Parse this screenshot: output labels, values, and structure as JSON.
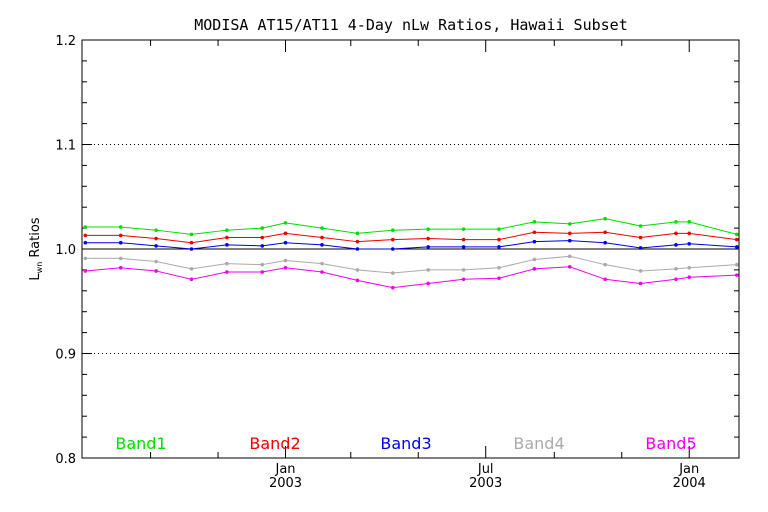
{
  "chart_data": {
    "type": "line",
    "title": "MODISA AT15/AT11 4-Day nLw Ratios, Hawaii Subset",
    "ylabel": {
      "main": "L",
      "sub": "wn",
      "rest": " Ratios"
    },
    "ylim": [
      0.8,
      1.2
    ],
    "y_ticks": [
      {
        "value": 0.8,
        "label": "0.8"
      },
      {
        "value": 0.9,
        "label": "0.9"
      },
      {
        "value": 1.0,
        "label": "1.0"
      },
      {
        "value": 1.1,
        "label": "1.1"
      },
      {
        "value": 1.2,
        "label": "1.2"
      }
    ],
    "y_minor_step": 0.02,
    "y_dotted_gridlines": [
      0.9,
      1.0,
      1.1
    ],
    "xlim": [
      "2002-07-01",
      "2004-02-15"
    ],
    "x_ticks": [
      {
        "date": "2003-01-01",
        "label": "Jan",
        "label2": "2003"
      },
      {
        "date": "2003-07-01",
        "label": "Jul",
        "label2": "2003"
      },
      {
        "date": "2004-01-01",
        "label": "Jan",
        "label2": "2004"
      }
    ],
    "x_minor_ticks": [
      "2002-09-01",
      "2002-11-01",
      "2003-03-01",
      "2003-05-01",
      "2003-09-01",
      "2003-11-01"
    ],
    "x": [
      "2002-07-04",
      "2002-08-05",
      "2002-09-06",
      "2002-10-08",
      "2002-11-09",
      "2002-12-11",
      "2003-01-01",
      "2003-02-03",
      "2003-03-07",
      "2003-04-08",
      "2003-05-10",
      "2003-06-11",
      "2003-07-13",
      "2003-08-14",
      "2003-09-15",
      "2003-10-17",
      "2003-11-18",
      "2003-12-20",
      "2004-01-01",
      "2004-02-13"
    ],
    "series": [
      {
        "name": "Band1",
        "color": "#00dd00",
        "values": [
          1.021,
          1.021,
          1.018,
          1.014,
          1.018,
          1.02,
          1.025,
          1.02,
          1.015,
          1.018,
          1.019,
          1.019,
          1.019,
          1.026,
          1.024,
          1.029,
          1.022,
          1.026,
          1.026,
          1.014
        ]
      },
      {
        "name": "Band2",
        "color": "#ee0000",
        "values": [
          1.013,
          1.013,
          1.01,
          1.006,
          1.011,
          1.011,
          1.015,
          1.011,
          1.007,
          1.009,
          1.01,
          1.009,
          1.009,
          1.016,
          1.015,
          1.016,
          1.011,
          1.015,
          1.015,
          1.009
        ]
      },
      {
        "name": "Band3",
        "color": "#0000ee",
        "values": [
          1.006,
          1.006,
          1.003,
          1.0,
          1.004,
          1.003,
          1.006,
          1.004,
          1.0,
          1.0,
          1.002,
          1.002,
          1.002,
          1.007,
          1.008,
          1.006,
          1.001,
          1.004,
          1.005,
          1.002
        ]
      },
      {
        "name": "Band4",
        "color": "#aaaaaa",
        "values": [
          0.991,
          0.991,
          0.988,
          0.981,
          0.986,
          0.985,
          0.989,
          0.986,
          0.98,
          0.977,
          0.98,
          0.98,
          0.982,
          0.99,
          0.993,
          0.985,
          0.979,
          0.981,
          0.982,
          0.985
        ]
      },
      {
        "name": "Band5",
        "color": "#ee00ee",
        "values": [
          0.979,
          0.982,
          0.979,
          0.971,
          0.978,
          0.978,
          0.982,
          0.978,
          0.97,
          0.963,
          0.967,
          0.971,
          0.972,
          0.981,
          0.983,
          0.971,
          0.967,
          0.971,
          0.973,
          0.975
        ]
      }
    ],
    "reference_series": {
      "color": "#000000",
      "values": [
        1.0,
        1.0,
        1.0,
        1.0,
        1.0,
        1.0,
        1.0,
        1.0,
        1.0,
        1.0,
        1.0,
        1.0,
        1.0,
        1.0,
        1.0,
        1.0,
        1.0,
        1.0,
        1.0,
        1.0
      ]
    },
    "legend_placement": "bottom, inside plot"
  }
}
